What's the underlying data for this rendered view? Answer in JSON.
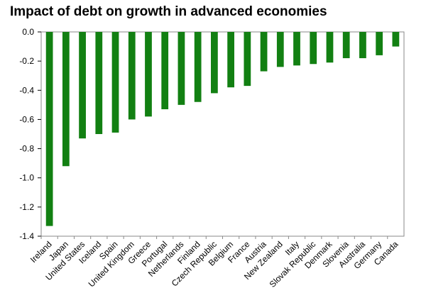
{
  "chart_data": {
    "type": "bar",
    "title": "Impact of debt on growth in advanced economies",
    "xlabel": "",
    "ylabel": "",
    "ylim": [
      -1.4,
      0.0
    ],
    "yticks": [
      "0.0",
      "-0.2",
      "-0.4",
      "-0.6",
      "-0.8",
      "-1.0",
      "-1.2",
      "-1.4"
    ],
    "grid": false,
    "legend": "none",
    "bar_color": "#128012",
    "categories": [
      "Ireland",
      "Japan",
      "United States",
      "Iceland",
      "Spain",
      "United Kingdom",
      "Greece",
      "Portugal",
      "Netherlands",
      "Finland",
      "Czech Republic",
      "Belgium",
      "France",
      "Austria",
      "New Zealand",
      "Italy",
      "Slovak Republic",
      "Denmark",
      "Slovenia",
      "Australia",
      "Germany",
      "Canada"
    ],
    "values": [
      -1.33,
      -0.92,
      -0.73,
      -0.7,
      -0.69,
      -0.6,
      -0.58,
      -0.53,
      -0.5,
      -0.48,
      -0.42,
      -0.38,
      -0.37,
      -0.27,
      -0.24,
      -0.23,
      -0.22,
      -0.21,
      -0.18,
      -0.18,
      -0.16,
      -0.1
    ]
  }
}
